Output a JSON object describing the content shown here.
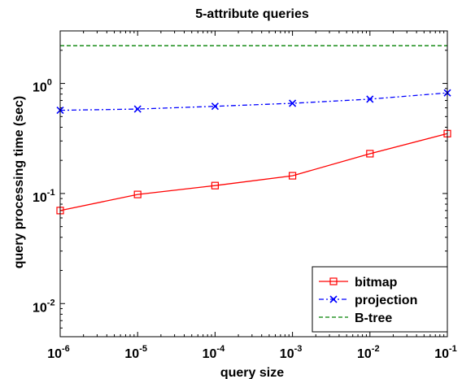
{
  "chart_data": {
    "type": "line",
    "title": "5-attribute queries",
    "xlabel": "query size",
    "ylabel": "query processing time (sec)",
    "x_scale": "log",
    "y_scale": "log",
    "xlim": [
      1e-06,
      0.1
    ],
    "ylim": [
      0.005,
      3
    ],
    "x_ticks": [
      {
        "base": "10",
        "exp": "-6",
        "value": 1e-06
      },
      {
        "base": "10",
        "exp": "-5",
        "value": 1e-05
      },
      {
        "base": "10",
        "exp": "-4",
        "value": 0.0001
      },
      {
        "base": "10",
        "exp": "-3",
        "value": 0.001
      },
      {
        "base": "10",
        "exp": "-2",
        "value": 0.01
      },
      {
        "base": "10",
        "exp": "-1",
        "value": 0.1
      }
    ],
    "y_ticks": [
      {
        "base": "10",
        "exp": "-2",
        "value": 0.01
      },
      {
        "base": "10",
        "exp": "-1",
        "value": 0.1
      },
      {
        "base": "10",
        "exp": "0",
        "value": 1
      }
    ],
    "x": [
      1e-06,
      1e-05,
      0.0001,
      0.001,
      0.01,
      0.1
    ],
    "series": [
      {
        "name": "bitmap",
        "values": [
          0.07,
          0.098,
          0.118,
          0.145,
          0.23,
          0.35
        ],
        "color": "#ff0000",
        "dash": "",
        "marker": "square"
      },
      {
        "name": "projection",
        "values": [
          0.57,
          0.585,
          0.62,
          0.66,
          0.72,
          0.82
        ],
        "color": "#0000ff",
        "dash": "6,3,2,3",
        "marker": "x"
      },
      {
        "name": "B-tree",
        "values": [
          2.2,
          2.2,
          2.2,
          2.2,
          2.2,
          2.2
        ],
        "color": "#008000",
        "dash": "5,3",
        "marker": "none"
      }
    ],
    "legend_position": "bottom-right",
    "grid": false
  }
}
